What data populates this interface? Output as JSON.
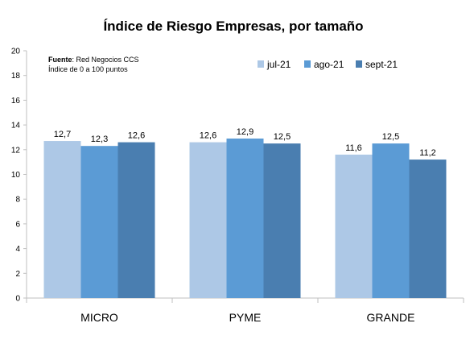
{
  "chart_data": {
    "type": "bar",
    "title": "Índice de Riesgo Empresas, por tamaño",
    "note_label": "Fuente",
    "note_source": ": Red Negocios CCS",
    "note_scale": "Índice de 0 a 100 puntos",
    "categories": [
      "MICRO",
      "PYME",
      "GRANDE"
    ],
    "series": [
      {
        "name": "jul-21",
        "color": "#adc8e6",
        "values": [
          12.7,
          12.6,
          11.6
        ],
        "labels": [
          "12,7",
          "12,6",
          "11,6"
        ]
      },
      {
        "name": "ago-21",
        "color": "#5b9bd5",
        "values": [
          12.3,
          12.9,
          12.5
        ],
        "labels": [
          "12,3",
          "12,9",
          "12,5"
        ]
      },
      {
        "name": "sept-21",
        "color": "#4a7eb0",
        "values": [
          12.6,
          12.5,
          11.2
        ],
        "labels": [
          "12,6",
          "12,5",
          "11,2"
        ]
      }
    ],
    "ylim": [
      0,
      20
    ],
    "yticks": [
      0,
      2,
      4,
      6,
      8,
      10,
      12,
      14,
      16,
      18,
      20
    ],
    "grid": false,
    "legend_position": "top-right"
  }
}
